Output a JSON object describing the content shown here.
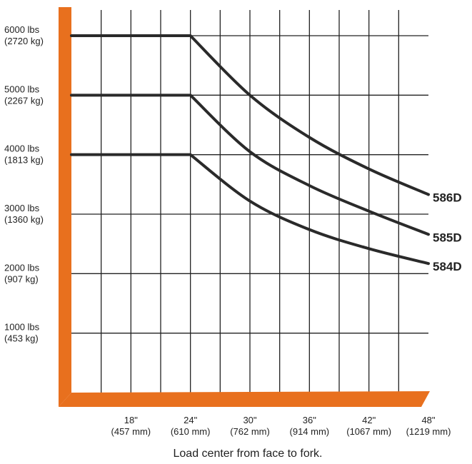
{
  "chart_data": {
    "type": "line",
    "title": "",
    "xlabel": "Load center from face to fork.",
    "ylabel": "",
    "colors": {
      "axis": "#e8701e",
      "line": "#2a2a2a",
      "grid": "#222222"
    },
    "grid": true,
    "x_unit": "inches",
    "y_unit": "lbs",
    "xlim": [
      12,
      48
    ],
    "ylim": [
      0,
      6000
    ],
    "x_ticks": [
      {
        "value": 18,
        "label": "18\"",
        "sublabel": "(457 mm)"
      },
      {
        "value": 24,
        "label": "24\"",
        "sublabel": "(610 mm)"
      },
      {
        "value": 30,
        "label": "30\"",
        "sublabel": "(762 mm)"
      },
      {
        "value": 36,
        "label": "36\"",
        "sublabel": "(914 mm)"
      },
      {
        "value": 42,
        "label": "42\"",
        "sublabel": "(1067 mm)"
      },
      {
        "value": 48,
        "label": "48\"",
        "sublabel": "(1219 mm)"
      }
    ],
    "y_ticks": [
      {
        "value": 1000,
        "label": "1000 lbs",
        "sublabel": "(453 kg)"
      },
      {
        "value": 2000,
        "label": "2000 lbs",
        "sublabel": "(907 kg)"
      },
      {
        "value": 3000,
        "label": "3000 lbs",
        "sublabel": "(1360 kg)"
      },
      {
        "value": 4000,
        "label": "4000 lbs",
        "sublabel": "(1813 kg)"
      },
      {
        "value": 5000,
        "label": "5000 lbs",
        "sublabel": "(2267 kg)"
      },
      {
        "value": 6000,
        "label": "6000 lbs",
        "sublabel": "(2720 kg)"
      }
    ],
    "series": [
      {
        "name": "586D",
        "x": [
          12,
          24,
          30,
          36,
          42,
          48
        ],
        "y": [
          6000,
          6000,
          5000,
          4290,
          3760,
          3330
        ]
      },
      {
        "name": "585D",
        "x": [
          12,
          24,
          30,
          36,
          42,
          48
        ],
        "y": [
          5000,
          5000,
          4050,
          3480,
          3050,
          2660
        ]
      },
      {
        "name": "584D",
        "x": [
          12,
          24,
          30,
          36,
          42,
          48
        ],
        "y": [
          4000,
          4000,
          3220,
          2740,
          2420,
          2170
        ]
      }
    ]
  }
}
